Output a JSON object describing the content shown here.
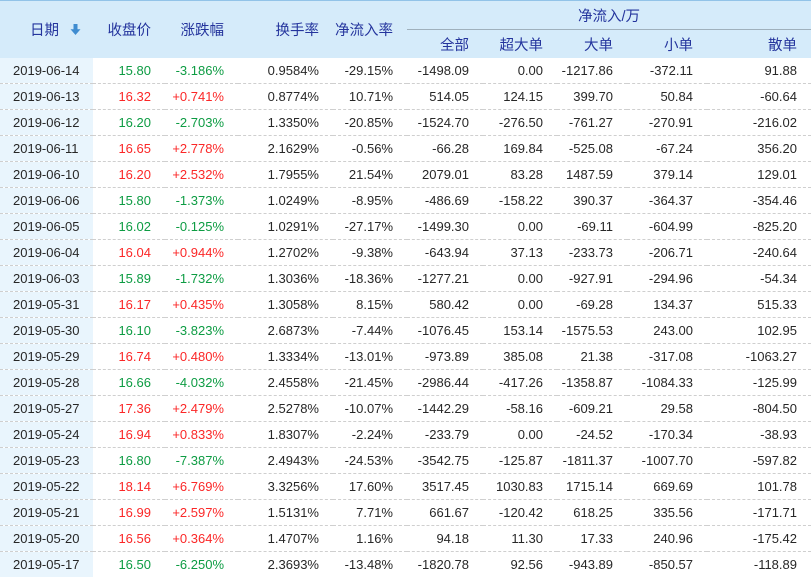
{
  "table": {
    "header": {
      "date_label": "日期",
      "close_label": "收盘价",
      "change_label": "涨跌幅",
      "turnover_label": "换手率",
      "inflow_rate_label": "净流入率",
      "group_label": "净流入/万",
      "sub_labels": {
        "all": "全部",
        "super_large": "超大单",
        "large": "大单",
        "small": "小单",
        "retail": "散单"
      },
      "sort_icon": "sort-descending-arrow"
    },
    "trend_colors": {
      "up": "#fb2727",
      "down": "#0d9c43"
    },
    "accent_colors": {
      "header_bg": "#d5ebfa",
      "header_text": "#24349d",
      "date_column_bg": "#e9f5fd",
      "sort_arrow": "#3f8cd0"
    },
    "rows": [
      {
        "date": "2019-06-14",
        "close": "15.80",
        "change": "-3.186%",
        "trend": "down",
        "turnover": "0.9584%",
        "inflow_rate": "-29.15%",
        "all": "-1498.09",
        "super_large": "0.00",
        "large": "-1217.86",
        "small": "-372.11",
        "retail": "91.88"
      },
      {
        "date": "2019-06-13",
        "close": "16.32",
        "change": "+0.741%",
        "trend": "up",
        "turnover": "0.8774%",
        "inflow_rate": "10.71%",
        "all": "514.05",
        "super_large": "124.15",
        "large": "399.70",
        "small": "50.84",
        "retail": "-60.64"
      },
      {
        "date": "2019-06-12",
        "close": "16.20",
        "change": "-2.703%",
        "trend": "down",
        "turnover": "1.3350%",
        "inflow_rate": "-20.85%",
        "all": "-1524.70",
        "super_large": "-276.50",
        "large": "-761.27",
        "small": "-270.91",
        "retail": "-216.02"
      },
      {
        "date": "2019-06-11",
        "close": "16.65",
        "change": "+2.778%",
        "trend": "up",
        "turnover": "2.1629%",
        "inflow_rate": "-0.56%",
        "all": "-66.28",
        "super_large": "169.84",
        "large": "-525.08",
        "small": "-67.24",
        "retail": "356.20"
      },
      {
        "date": "2019-06-10",
        "close": "16.20",
        "change": "+2.532%",
        "trend": "up",
        "turnover": "1.7955%",
        "inflow_rate": "21.54%",
        "all": "2079.01",
        "super_large": "83.28",
        "large": "1487.59",
        "small": "379.14",
        "retail": "129.01"
      },
      {
        "date": "2019-06-06",
        "close": "15.80",
        "change": "-1.373%",
        "trend": "down",
        "turnover": "1.0249%",
        "inflow_rate": "-8.95%",
        "all": "-486.69",
        "super_large": "-158.22",
        "large": "390.37",
        "small": "-364.37",
        "retail": "-354.46"
      },
      {
        "date": "2019-06-05",
        "close": "16.02",
        "change": "-0.125%",
        "trend": "down",
        "turnover": "1.0291%",
        "inflow_rate": "-27.17%",
        "all": "-1499.30",
        "super_large": "0.00",
        "large": "-69.11",
        "small": "-604.99",
        "retail": "-825.20"
      },
      {
        "date": "2019-06-04",
        "close": "16.04",
        "change": "+0.944%",
        "trend": "up",
        "turnover": "1.2702%",
        "inflow_rate": "-9.38%",
        "all": "-643.94",
        "super_large": "37.13",
        "large": "-233.73",
        "small": "-206.71",
        "retail": "-240.64"
      },
      {
        "date": "2019-06-03",
        "close": "15.89",
        "change": "-1.732%",
        "trend": "down",
        "turnover": "1.3036%",
        "inflow_rate": "-18.36%",
        "all": "-1277.21",
        "super_large": "0.00",
        "large": "-927.91",
        "small": "-294.96",
        "retail": "-54.34"
      },
      {
        "date": "2019-05-31",
        "close": "16.17",
        "change": "+0.435%",
        "trend": "up",
        "turnover": "1.3058%",
        "inflow_rate": "8.15%",
        "all": "580.42",
        "super_large": "0.00",
        "large": "-69.28",
        "small": "134.37",
        "retail": "515.33"
      },
      {
        "date": "2019-05-30",
        "close": "16.10",
        "change": "-3.823%",
        "trend": "down",
        "turnover": "2.6873%",
        "inflow_rate": "-7.44%",
        "all": "-1076.45",
        "super_large": "153.14",
        "large": "-1575.53",
        "small": "243.00",
        "retail": "102.95"
      },
      {
        "date": "2019-05-29",
        "close": "16.74",
        "change": "+0.480%",
        "trend": "up",
        "turnover": "1.3334%",
        "inflow_rate": "-13.01%",
        "all": "-973.89",
        "super_large": "385.08",
        "large": "21.38",
        "small": "-317.08",
        "retail": "-1063.27"
      },
      {
        "date": "2019-05-28",
        "close": "16.66",
        "change": "-4.032%",
        "trend": "down",
        "turnover": "2.4558%",
        "inflow_rate": "-21.45%",
        "all": "-2986.44",
        "super_large": "-417.26",
        "large": "-1358.87",
        "small": "-1084.33",
        "retail": "-125.99"
      },
      {
        "date": "2019-05-27",
        "close": "17.36",
        "change": "+2.479%",
        "trend": "up",
        "turnover": "2.5278%",
        "inflow_rate": "-10.07%",
        "all": "-1442.29",
        "super_large": "-58.16",
        "large": "-609.21",
        "small": "29.58",
        "retail": "-804.50"
      },
      {
        "date": "2019-05-24",
        "close": "16.94",
        "change": "+0.833%",
        "trend": "up",
        "turnover": "1.8307%",
        "inflow_rate": "-2.24%",
        "all": "-233.79",
        "super_large": "0.00",
        "large": "-24.52",
        "small": "-170.34",
        "retail": "-38.93"
      },
      {
        "date": "2019-05-23",
        "close": "16.80",
        "change": "-7.387%",
        "trend": "down",
        "turnover": "2.4943%",
        "inflow_rate": "-24.53%",
        "all": "-3542.75",
        "super_large": "-125.87",
        "large": "-1811.37",
        "small": "-1007.70",
        "retail": "-597.82"
      },
      {
        "date": "2019-05-22",
        "close": "18.14",
        "change": "+6.769%",
        "trend": "up",
        "turnover": "3.3256%",
        "inflow_rate": "17.60%",
        "all": "3517.45",
        "super_large": "1030.83",
        "large": "1715.14",
        "small": "669.69",
        "retail": "101.78"
      },
      {
        "date": "2019-05-21",
        "close": "16.99",
        "change": "+2.597%",
        "trend": "up",
        "turnover": "1.5131%",
        "inflow_rate": "7.71%",
        "all": "661.67",
        "super_large": "-120.42",
        "large": "618.25",
        "small": "335.56",
        "retail": "-171.71"
      },
      {
        "date": "2019-05-20",
        "close": "16.56",
        "change": "+0.364%",
        "trend": "up",
        "turnover": "1.4707%",
        "inflow_rate": "1.16%",
        "all": "94.18",
        "super_large": "11.30",
        "large": "17.33",
        "small": "240.96",
        "retail": "-175.42"
      },
      {
        "date": "2019-05-17",
        "close": "16.50",
        "change": "-6.250%",
        "trend": "down",
        "turnover": "2.3693%",
        "inflow_rate": "-13.48%",
        "all": "-1820.78",
        "super_large": "92.56",
        "large": "-943.89",
        "small": "-850.57",
        "retail": "-118.89"
      }
    ]
  }
}
